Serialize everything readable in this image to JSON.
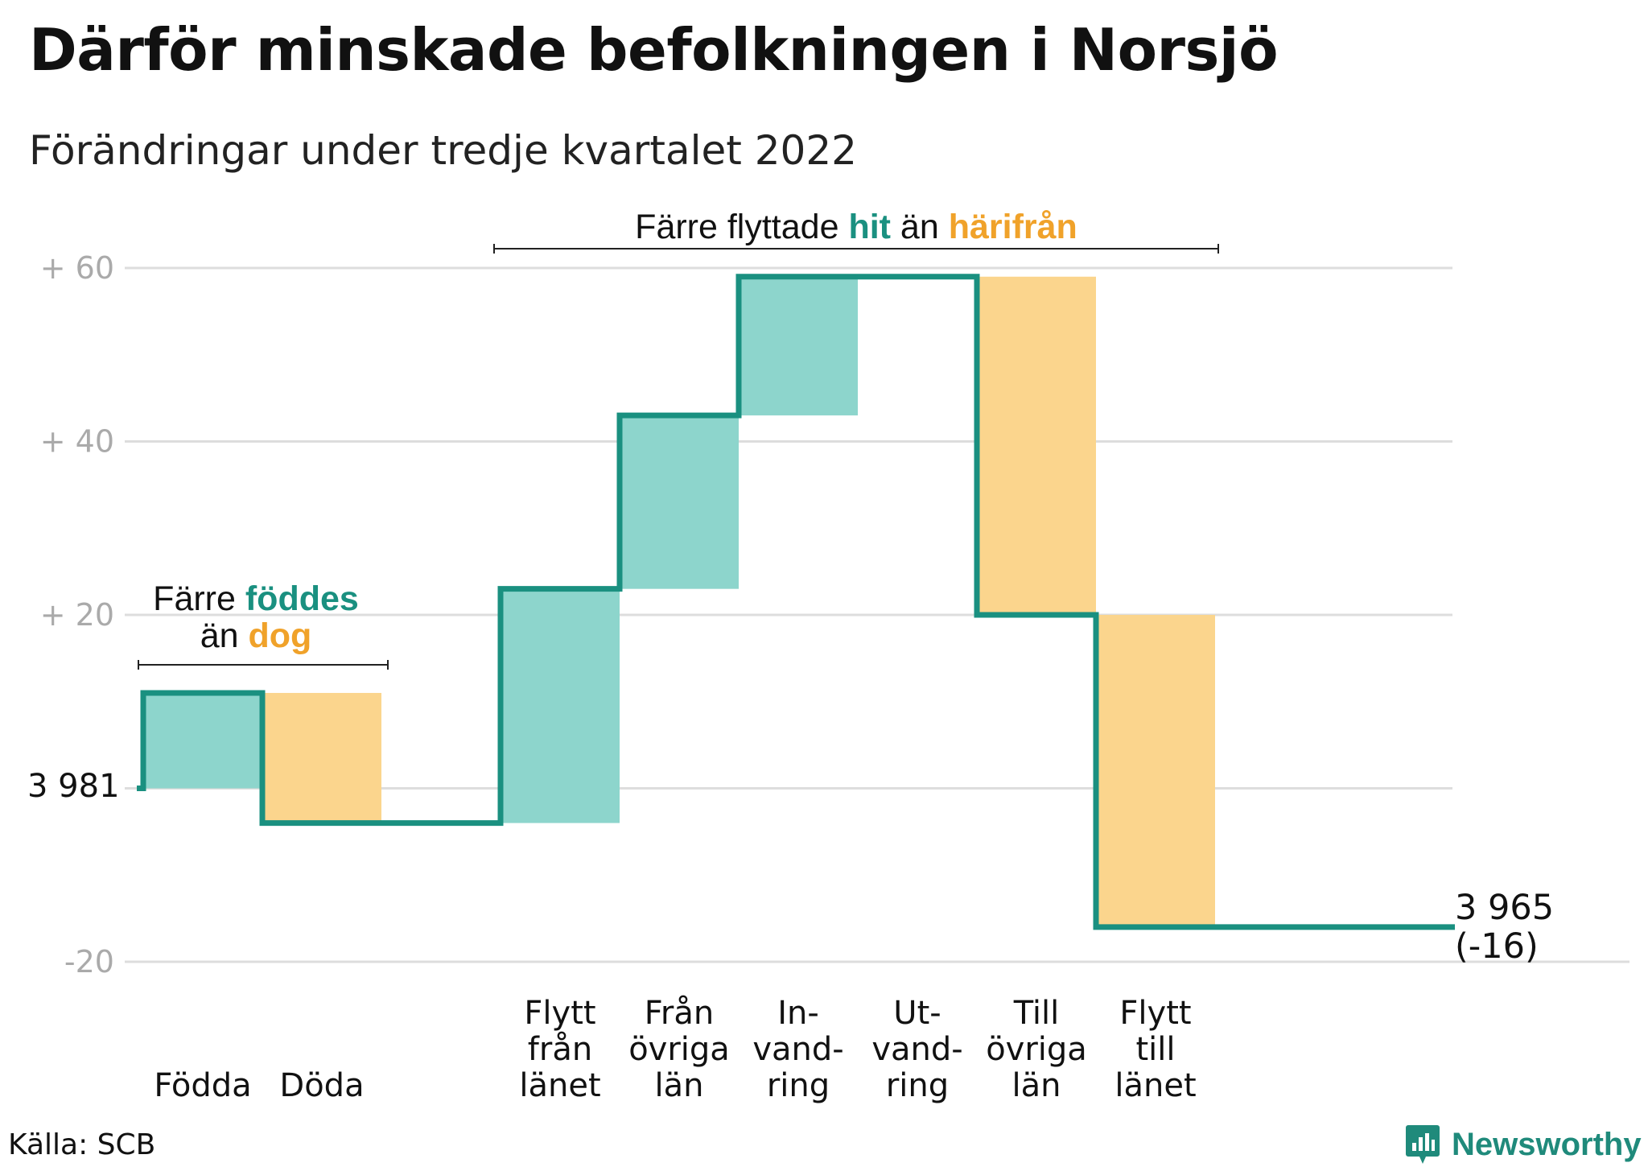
{
  "header": {
    "title": "Därför minskade befolkningen i Norsjö",
    "subtitle": "Förändringar under tredje kvartalet 2022"
  },
  "source": "Källa: SCB",
  "brand": {
    "name": "Newsworthy",
    "icon": "bar-chart-badge-icon",
    "color": "#1f8a7b"
  },
  "colors": {
    "increase": "#8dd5cc",
    "decrease": "#fbd58d",
    "step_line": "#1a9080",
    "grid": "#dddddd"
  },
  "annotations": {
    "birth_death": {
      "prefix": "Färre ",
      "highlight1": "föddes",
      "middle": "än ",
      "highlight2": "dog"
    },
    "migration": {
      "prefix": "Färre flyttade ",
      "highlight1": "hit",
      "middle": " än ",
      "highlight2": "härifrån"
    }
  },
  "chart_data": {
    "type": "waterfall",
    "base_value": 3981,
    "start_label": "3 981",
    "end_label_line1": "3 965",
    "end_label_line2": "(-16)",
    "ylim": [
      -20,
      60
    ],
    "yticks": [
      {
        "value": 60,
        "label": "+ 60"
      },
      {
        "value": 40,
        "label": "+ 40"
      },
      {
        "value": 20,
        "label": "+ 20"
      },
      {
        "value": -20,
        "label": "-20"
      }
    ],
    "grid": true,
    "steps": [
      {
        "category": [
          "Födda"
        ],
        "change": 11,
        "kind": "increase"
      },
      {
        "category": [
          "Döda"
        ],
        "change": -15,
        "kind": "decrease"
      },
      {
        "category": [
          ""
        ],
        "change": 0,
        "kind": "spacer"
      },
      {
        "category": [
          "Flytt",
          "från",
          "länet"
        ],
        "change": 27,
        "kind": "increase"
      },
      {
        "category": [
          "Från",
          "övriga",
          "län"
        ],
        "change": 20,
        "kind": "increase"
      },
      {
        "category": [
          "In-",
          "vand-",
          "ring"
        ],
        "change": 16,
        "kind": "increase"
      },
      {
        "category": [
          "Ut-",
          "vand-",
          "ring"
        ],
        "change": 0,
        "kind": "decrease"
      },
      {
        "category": [
          "Till",
          "övriga",
          "län"
        ],
        "change": -39,
        "kind": "decrease"
      },
      {
        "category": [
          "Flytt",
          "till",
          "länet"
        ],
        "change": -36,
        "kind": "decrease"
      },
      {
        "category": [
          ""
        ],
        "change": 0,
        "kind": "spacer"
      }
    ]
  }
}
